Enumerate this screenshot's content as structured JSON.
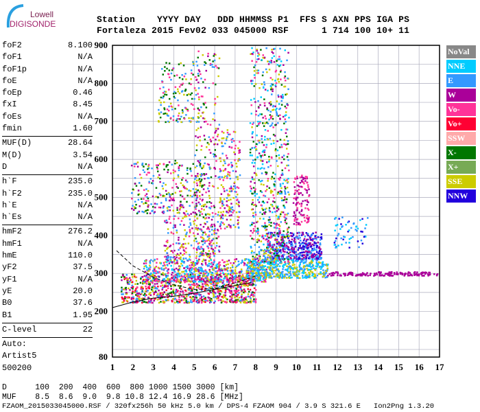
{
  "logo": {
    "line1": "Lowell",
    "line2": "DIGISONDE"
  },
  "header": {
    "labels": "Station    YYYY DAY   DDD HHMMSS P1  FFS S AXN PPS IGA PS",
    "values": "Fortaleza 2015 Fev02 033 045000 RSF      1 714 100 10+ 11"
  },
  "params": [
    [
      {
        "k": "foF2",
        "v": "8.100"
      },
      {
        "k": "foF1",
        "v": "N/A"
      },
      {
        "k": "foF1p",
        "v": "N/A"
      },
      {
        "k": "foE",
        "v": "N/A"
      },
      {
        "k": "foEp",
        "v": "0.46"
      },
      {
        "k": "fxI",
        "v": "8.45"
      },
      {
        "k": "foEs",
        "v": "N/A"
      },
      {
        "k": "fmin",
        "v": "1.60"
      }
    ],
    [
      {
        "k": "MUF(D)",
        "v": "28.64"
      },
      {
        "k": "M(D)",
        "v": "3.54"
      },
      {
        "k": "D",
        "v": "N/A"
      }
    ],
    [
      {
        "k": "h`F",
        "v": "235.0"
      },
      {
        "k": "h`F2",
        "v": "235.0"
      },
      {
        "k": "h`E",
        "v": "N/A"
      },
      {
        "k": "h`Es",
        "v": "N/A"
      }
    ],
    [
      {
        "k": "hmF2",
        "v": "276.2"
      },
      {
        "k": "hmF1",
        "v": "N/A"
      },
      {
        "k": "hmE",
        "v": "110.0"
      },
      {
        "k": "yF2",
        "v": "37.5"
      },
      {
        "k": "yF1",
        "v": "N/A"
      },
      {
        "k": "yE",
        "v": "20.0"
      },
      {
        "k": "B0",
        "v": "37.6"
      },
      {
        "k": "B1",
        "v": "1.95"
      }
    ],
    [
      {
        "k": "C-level",
        "v": "22"
      }
    ]
  ],
  "auto": [
    "Auto:",
    "Artist5",
    "500200"
  ],
  "legend": [
    {
      "label": "NoVal",
      "color": "#888888"
    },
    {
      "label": "NNE",
      "color": "#00ccff"
    },
    {
      "label": "E",
      "color": "#3399ff"
    },
    {
      "label": "W",
      "color": "#aa0099"
    },
    {
      "label": "Vo-",
      "color": "#ff3399"
    },
    {
      "label": "Vo+",
      "color": "#ff0033"
    },
    {
      "label": "SSW",
      "color": "#ffaaaa"
    },
    {
      "label": "X-",
      "color": "#007700"
    },
    {
      "label": "X+",
      "color": "#77aa55"
    },
    {
      "label": "SSE",
      "color": "#cccc00"
    },
    {
      "label": "NNW",
      "color": "#2200dd"
    }
  ],
  "footer": {
    "d_row": "D      100  200  400  600  800 1000 1500 3000 [km]",
    "muf_row": "MUF    8.5  8.6  9.0  9.8 10.8 12.4 16.9 28.6 [MHz]",
    "info": "FZAOM_2015033045000.RSF / 320fx256h 50 kHz 5.0 km / DPS-4 FZAOM 904 / 3.9 S 321.6 E   Ion2Png 1.3.20"
  },
  "chart_data": {
    "type": "scatter",
    "xlabel": "Frequency [MHz]",
    "ylabel": "Virtual height [km]",
    "xlim": [
      1,
      17
    ],
    "ylim": [
      80,
      900
    ],
    "xticks": [
      "1",
      "2",
      "3",
      "4",
      "5",
      "6",
      "7",
      "8",
      "9",
      "10",
      "11",
      "12",
      "13",
      "14",
      "15",
      "16",
      "17"
    ],
    "yticks": [
      {
        "v": 900,
        "t": "900"
      },
      {
        "v": 800,
        "t": "800"
      },
      {
        "v": 700,
        "t": "700"
      },
      {
        "v": 600,
        "t": "600"
      },
      {
        "v": 500,
        "t": "500"
      },
      {
        "v": 400,
        "t": "400"
      },
      {
        "v": 300,
        "t": "300"
      },
      {
        "v": 200,
        "t": "200"
      },
      {
        "v": 80,
        "t": "80"
      }
    ],
    "clusters": [
      {
        "f": [
          1.4,
          8.0
        ],
        "h": [
          225,
          300
        ],
        "n": 900,
        "colors": [
          "#ff3399",
          "#007700",
          "#3399ff",
          "#ff0033",
          "#cccc00",
          "#aa0099"
        ]
      },
      {
        "f": [
          2.5,
          8.5
        ],
        "h": [
          280,
          340
        ],
        "n": 700,
        "colors": [
          "#3399ff",
          "#00ccff",
          "#aa0099",
          "#cccc00",
          "#ff3399"
        ]
      },
      {
        "f": [
          7.5,
          11.5
        ],
        "h": [
          290,
          340
        ],
        "n": 500,
        "colors": [
          "#cccc00",
          "#3399ff",
          "#00ccff"
        ]
      },
      {
        "f": [
          8.5,
          11.2
        ],
        "h": [
          340,
          410
        ],
        "n": 450,
        "colors": [
          "#2200dd",
          "#3399ff",
          "#aa0099"
        ]
      },
      {
        "f": [
          11.5,
          16.9
        ],
        "h": [
          296,
          306
        ],
        "n": 160,
        "colors": [
          "#aa0099"
        ]
      },
      {
        "f": [
          11.8,
          13.5
        ],
        "h": [
          370,
          450
        ],
        "n": 60,
        "colors": [
          "#3399ff",
          "#00ccff",
          "#2200dd"
        ]
      },
      {
        "f": [
          1.9,
          5.5
        ],
        "h": [
          460,
          600
        ],
        "n": 300,
        "colors": [
          "#cccc00",
          "#3399ff",
          "#ff3399",
          "#007700",
          "#aa0099"
        ]
      },
      {
        "f": [
          3.2,
          5.2
        ],
        "h": [
          700,
          860
        ],
        "n": 160,
        "colors": [
          "#cccc00",
          "#3399ff",
          "#ff3399",
          "#007700"
        ]
      },
      {
        "f": [
          5.0,
          6.2
        ],
        "h": [
          350,
          900
        ],
        "n": 250,
        "colors": [
          "#cccc00",
          "#3399ff",
          "#ff3399",
          "#007700",
          "#aa0099"
        ]
      },
      {
        "f": [
          6.2,
          7.2
        ],
        "h": [
          420,
          680
        ],
        "n": 200,
        "colors": [
          "#cccc00",
          "#ff3399",
          "#3399ff",
          "#aa0099"
        ]
      },
      {
        "f": [
          7.7,
          9.6
        ],
        "h": [
          330,
          900
        ],
        "n": 700,
        "colors": [
          "#cccc00",
          "#3399ff",
          "#00ccff",
          "#ff3399",
          "#aa0099",
          "#007700"
        ]
      },
      {
        "f": [
          9.8,
          10.6
        ],
        "h": [
          430,
          560
        ],
        "n": 120,
        "colors": [
          "#aa0099",
          "#ff3399"
        ]
      },
      {
        "f": [
          3.5,
          6.0
        ],
        "h": [
          340,
          460
        ],
        "n": 200,
        "colors": [
          "#aa0099",
          "#ff3399",
          "#cccc00",
          "#3399ff"
        ]
      }
    ],
    "profile": [
      [
        1.0,
        210
      ],
      [
        2,
        225
      ],
      [
        3,
        235
      ],
      [
        4,
        240
      ],
      [
        5,
        248
      ],
      [
        6,
        258
      ],
      [
        7,
        268
      ],
      [
        7.8,
        276
      ]
    ],
    "dashed": [
      [
        1.2,
        360
      ],
      [
        2,
        320
      ],
      [
        3,
        290
      ],
      [
        4,
        270
      ],
      [
        5,
        258
      ],
      [
        6,
        260
      ],
      [
        7,
        275
      ],
      [
        8.1,
        295
      ]
    ]
  }
}
